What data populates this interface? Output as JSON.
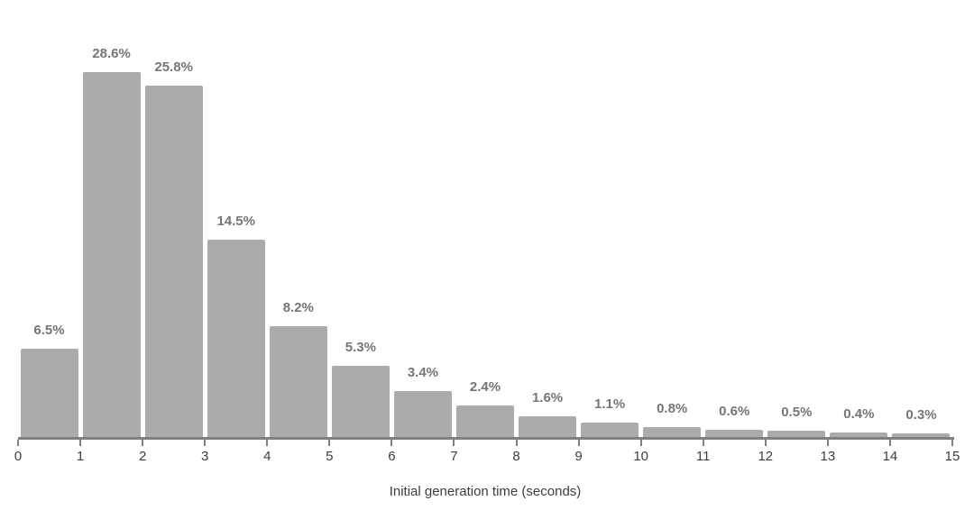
{
  "chart_data": {
    "type": "bar",
    "title": "",
    "xlabel": "Initial generation time (seconds)",
    "ylabel": "",
    "categories": [
      "0-1",
      "1-2",
      "2-3",
      "3-4",
      "4-5",
      "5-6",
      "6-7",
      "7-8",
      "8-9",
      "9-10",
      "10-11",
      "11-12",
      "12-13",
      "13-14",
      "14-15"
    ],
    "values": [
      6.5,
      28.6,
      25.8,
      14.5,
      8.2,
      5.3,
      3.4,
      2.4,
      1.6,
      1.1,
      0.8,
      0.6,
      0.5,
      0.4,
      0.3
    ],
    "bar_labels": [
      "6.5%",
      "28.6%",
      "25.8%",
      "14.5%",
      "8.2%",
      "5.3%",
      "3.4%",
      "2.4%",
      "1.6%",
      "1.1%",
      "0.8%",
      "0.6%",
      "0.5%",
      "0.4%",
      "0.3%"
    ],
    "x_tick_labels": [
      "0",
      "1",
      "2",
      "3",
      "4",
      "5",
      "6",
      "7",
      "8",
      "9",
      "10",
      "11",
      "12",
      "13",
      "14",
      "15"
    ],
    "xlim": [
      0,
      15
    ],
    "ylim": [
      0,
      28.6
    ],
    "grid": "off",
    "legend": "none",
    "colors": {
      "bar": "#ababab",
      "bar_label": "#757575",
      "axis": "#808080",
      "tick_label": "#3d3d3d",
      "axis_title": "#3d3d3d",
      "background": "#ffffff"
    }
  }
}
